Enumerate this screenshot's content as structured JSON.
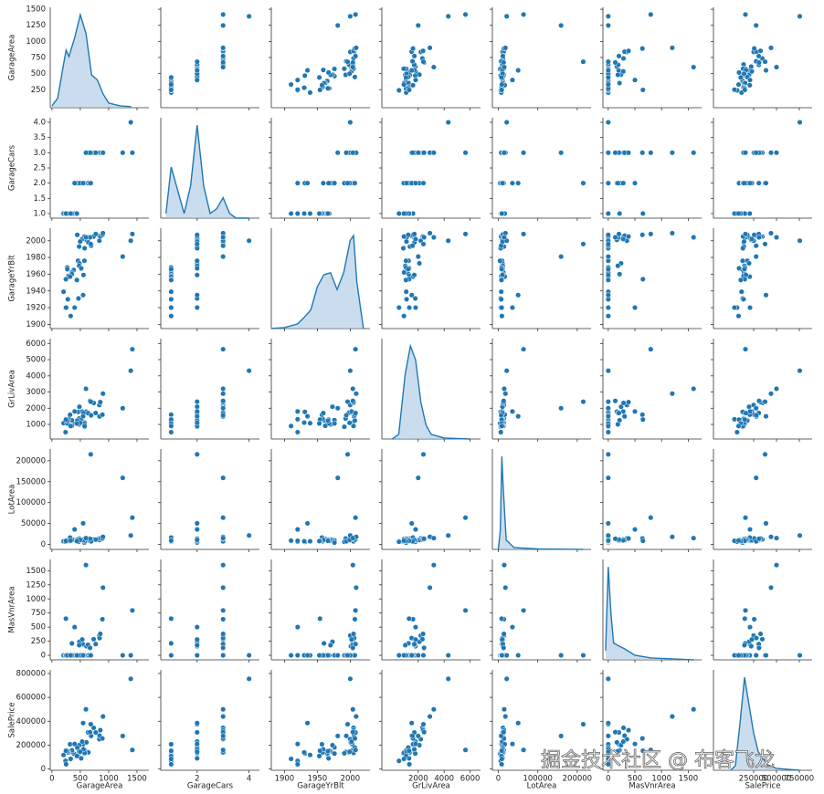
{
  "chart_data": {
    "type": "pairplot",
    "color": "#1f77b4",
    "kde_fill": "#a6c6e3",
    "kde_ylim": [
      0,
      1.08
    ],
    "watermark": "掘金技术社区 @ 布客飞龙",
    "variables": [
      {
        "name": "GarageArea",
        "values": [
          548,
          460,
          608,
          642,
          836,
          480,
          636,
          484,
          468,
          205,
          384,
          736,
          352,
          840,
          352,
          576,
          480,
          516,
          576,
          294,
          853,
          280,
          534,
          572,
          270,
          890,
          576,
          772,
          319,
          240,
          250,
          271,
          447,
          556,
          691,
          672,
          498,
          246,
          440,
          1390,
          1418,
          684,
          1248,
          550,
          400,
          900,
          600,
          330
        ],
        "xlim": [
          -30,
          1710
        ],
        "xticks": [
          0,
          500,
          1000,
          1500
        ],
        "ylim": [
          -30,
          1530
        ],
        "yticks": [
          250,
          500,
          750,
          1000,
          1250,
          1500
        ],
        "kde": {
          "x": [
            0,
            100,
            200,
            250,
            300,
            400,
            500,
            600,
            700,
            800,
            900,
            1000,
            1200,
            1400
          ],
          "density": [
            0.02,
            0.1,
            0.45,
            0.62,
            0.55,
            0.75,
            1.0,
            0.8,
            0.35,
            0.3,
            0.15,
            0.05,
            0.02,
            0.01
          ]
        }
      },
      {
        "name": "GarageCars",
        "values": [
          2,
          2,
          2,
          3,
          3,
          2,
          2,
          2,
          2,
          1,
          1,
          3,
          1,
          3,
          1,
          2,
          2,
          2,
          2,
          1,
          3,
          1,
          2,
          2,
          1,
          3,
          2,
          3,
          1,
          1,
          1,
          1,
          2,
          2,
          3,
          3,
          2,
          1,
          1,
          4,
          3,
          2,
          3,
          2,
          2,
          3,
          3,
          1
        ],
        "xlim": [
          0.6,
          4.4
        ],
        "xticks": [
          2,
          4
        ],
        "ylim": [
          0.85,
          4.15
        ],
        "yticks": [
          {
            "value": 1,
            "label": "1.0"
          },
          {
            "value": 1.5,
            "label": "1.5"
          },
          {
            "value": 2,
            "label": "2.0"
          },
          {
            "value": 2.5,
            "label": "2.5"
          },
          {
            "value": 3,
            "label": "3.0"
          },
          {
            "value": 3.5,
            "label": "3.5"
          },
          {
            "value": 4,
            "label": "4.0"
          }
        ],
        "kde": {
          "x": [
            0.8,
            1,
            1.25,
            1.5,
            1.75,
            2,
            2.25,
            2.5,
            2.75,
            3,
            3.25,
            3.5,
            4
          ],
          "density": [
            0.05,
            0.55,
            0.3,
            0.05,
            0.35,
            1.0,
            0.35,
            0.05,
            0.1,
            0.22,
            0.05,
            0.0,
            0.0
          ]
        }
      },
      {
        "name": "GarageYrBlt",
        "values": [
          2003,
          1976,
          2001,
          1998,
          2000,
          1993,
          2004,
          1973,
          1931,
          1939,
          1965,
          2005,
          1962,
          2006,
          1960,
          1991,
          1970,
          1967,
          2004,
          1958,
          2005,
          1930,
          2002,
          1976,
          1968,
          2007,
          2005,
          2008,
          1957,
          1920,
          1920,
          1966,
          2007,
          1959,
          1994,
          2004,
          1999,
          1954,
          1953,
          2000,
          2008,
          1996,
          1981,
          1935,
          1920,
          2009,
          2004,
          1910
        ],
        "xlim": [
          1880,
          2030
        ],
        "xticks": [
          1900,
          1950,
          2000
        ],
        "ylim": [
          1895,
          2015
        ],
        "yticks": [
          1900,
          1920,
          1940,
          1960,
          1980,
          2000
        ],
        "kde": {
          "x": [
            1880,
            1900,
            1920,
            1930,
            1940,
            1950,
            1960,
            1970,
            1980,
            1990,
            2000,
            2005,
            2010,
            2020
          ],
          "density": [
            0.0,
            0.01,
            0.05,
            0.12,
            0.2,
            0.45,
            0.58,
            0.6,
            0.42,
            0.6,
            0.95,
            1.0,
            0.5,
            0.0
          ]
        }
      },
      {
        "name": "GrLivArea",
        "values": [
          1710,
          1262,
          1786,
          1717,
          2198,
          1362,
          1694,
          2090,
          1774,
          1077,
          1040,
          2324,
          912,
          1494,
          1253,
          854,
          1004,
          1296,
          1114,
          1339,
          2376,
          1108,
          1795,
          1060,
          1060,
          1600,
          900,
          1704,
          1600,
          520,
          1317,
          1228,
          1234,
          1700,
          1561,
          2452,
          1097,
          1297,
          1057,
          4316,
          5642,
          2402,
          2000,
          1500,
          1800,
          2900,
          3200,
          900
        ],
        "xlim": [
          -800,
          6800
        ],
        "xticks": [
          2000,
          4000,
          6000
        ],
        "ylim": [
          100,
          6300
        ],
        "yticks": [
          1000,
          2000,
          3000,
          4000,
          5000,
          6000
        ],
        "kde": {
          "x": [
            0,
            500,
            1000,
            1400,
            1800,
            2200,
            2600,
            3000,
            4000,
            5000,
            6000
          ],
          "density": [
            0.0,
            0.05,
            0.7,
            1.0,
            0.85,
            0.4,
            0.15,
            0.05,
            0.01,
            0.005,
            0.0
          ]
        }
      },
      {
        "name": "LotArea",
        "values": [
          8450,
          9600,
          11250,
          9550,
          14260,
          14115,
          10084,
          10382,
          6120,
          7420,
          11200,
          11924,
          12968,
          10652,
          10920,
          6120,
          11241,
          10791,
          13695,
          7560,
          14215,
          7449,
          9742,
          4224,
          8246,
          14230,
          7200,
          11478,
          16321,
          6324,
          8500,
          8544,
          11049,
          10552,
          7313,
          13418,
          10859,
          8532,
          7922,
          21286,
          63887,
          215245,
          159000,
          50271,
          35760,
          18000,
          15000,
          9000
        ],
        "xlim": [
          -15000,
          235000
        ],
        "xticks": [
          0,
          100000,
          200000
        ],
        "ylim": [
          -12000,
          228000
        ],
        "yticks": [
          0,
          50000,
          100000,
          150000,
          200000
        ],
        "kde": {
          "x": [
            0,
            5000,
            9000,
            12000,
            20000,
            40000,
            100000,
            215000
          ],
          "density": [
            0.0,
            0.2,
            1.0,
            0.7,
            0.1,
            0.02,
            0.005,
            0.0
          ]
        }
      },
      {
        "name": "MasVnrArea",
        "values": [
          196,
          0,
          162,
          0,
          350,
          0,
          186,
          240,
          0,
          0,
          0,
          286,
          0,
          306,
          212,
          0,
          180,
          0,
          0,
          0,
          380,
          0,
          281,
          0,
          0,
          640,
          0,
          200,
          0,
          0,
          0,
          0,
          0,
          0,
          0,
          132,
          0,
          650,
          0,
          0,
          796,
          0,
          0,
          0,
          500,
          1200,
          1600,
          0
        ],
        "xlim": [
          -100,
          1750
        ],
        "xticks": [
          0,
          500,
          1000,
          1500
        ],
        "ylim": [
          -80,
          1700
        ],
        "yticks": [
          0,
          250,
          500,
          750,
          1000,
          1250,
          1500
        ],
        "kde": {
          "x": [
            -50,
            0,
            50,
            100,
            200,
            300,
            500,
            800,
            1200,
            1600
          ],
          "density": [
            0.1,
            1.0,
            0.5,
            0.18,
            0.15,
            0.12,
            0.05,
            0.02,
            0.01,
            0.0
          ]
        }
      },
      {
        "name": "SalePrice",
        "values": [
          208500,
          181500,
          223500,
          140000,
          250000,
          143000,
          307000,
          200000,
          129900,
          118000,
          129500,
          345000,
          144000,
          279500,
          157000,
          132000,
          149000,
          90000,
          159000,
          139000,
          325300,
          139400,
          230000,
          129900,
          154000,
          256300,
          134800,
          306000,
          207500,
          68500,
          40000,
          149350,
          179900,
          165500,
          277500,
          309000,
          145000,
          153000,
          109000,
          755000,
          160000,
          375000,
          277000,
          385000,
          210000,
          440000,
          500000,
          85000
        ],
        "xlim": [
          -190000,
          890000
        ],
        "xticks": [
          250000,
          500000,
          750000
        ],
        "ylim": [
          -10000,
          830000
        ],
        "yticks": [
          0,
          200000,
          400000,
          600000,
          800000
        ],
        "kde": {
          "x": [
            0,
            50000,
            100000,
            150000,
            200000,
            250000,
            300000,
            400000,
            500000,
            750000
          ],
          "density": [
            0.0,
            0.05,
            0.5,
            1.0,
            0.7,
            0.4,
            0.2,
            0.06,
            0.02,
            0.0
          ]
        }
      }
    ]
  }
}
